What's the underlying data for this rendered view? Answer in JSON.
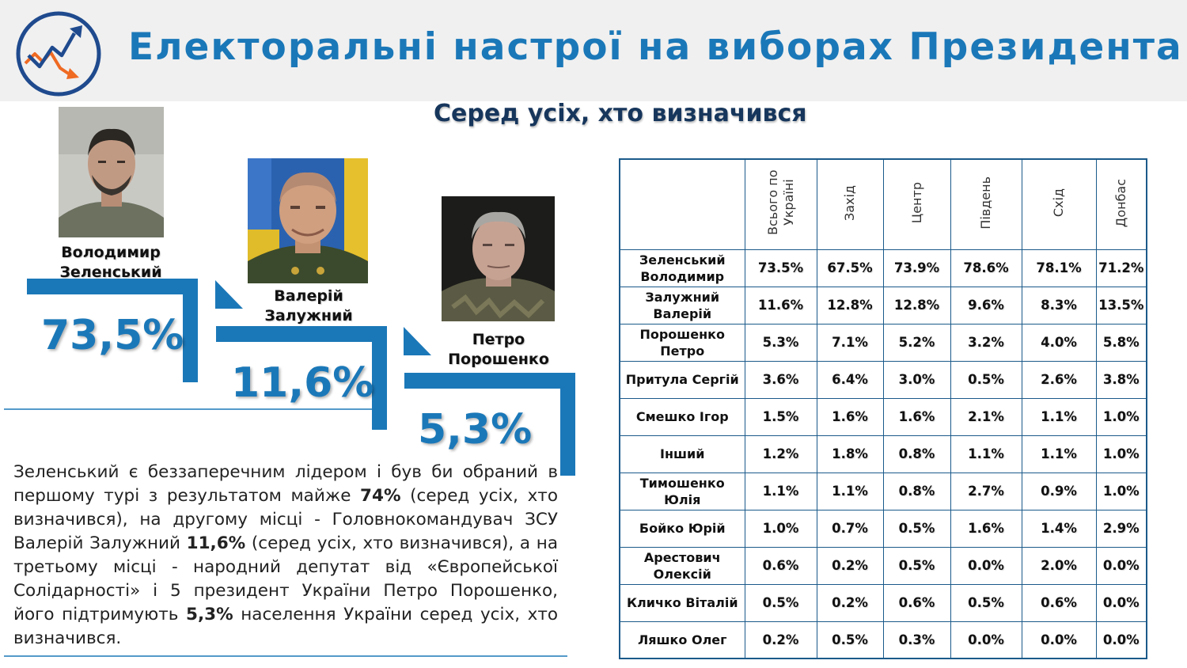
{
  "header": {
    "title": "Електоральні настрої на виборах Президента",
    "subtitle": "Серед усіх, хто визначився"
  },
  "candidates": [
    {
      "name_line1": "Володимир",
      "name_line2": "Зеленський",
      "percent": "73,5%",
      "photo": "zelensky-photo"
    },
    {
      "name_line1": "Валерій",
      "name_line2": "Залужний",
      "percent": "11,6%",
      "photo": "zaluzhny-photo"
    },
    {
      "name_line1": "Петро",
      "name_line2": "Порошенко",
      "percent": "5,3%",
      "photo": "poroshenko-photo"
    }
  ],
  "description": {
    "p1": "Зеленський є беззаперечним лідером і був би обраний в першому турі з результатом майже ",
    "b1": "74%",
    "p2": " (серед усіх, хто визначився), на другому місці - Головнокомандувач ЗСУ Валерій Залужний ",
    "b2": "11,6%",
    "p3": " (серед усіх, хто визначився), а на третьому місці - народний депутат від «Європейської Солідарності» і 5 президент України Петро Порошенко, його підтримують ",
    "b3": "5,3%",
    "p4": " населення України серед усіх, хто визначився."
  },
  "table": {
    "columns": [
      "Всього по Україні",
      "Захід",
      "Центр",
      "Південь",
      "Схід",
      "Донбас"
    ],
    "rows": [
      {
        "name": "Зеленський Володимир",
        "values": [
          "73.5%",
          "67.5%",
          "73.9%",
          "78.6%",
          "78.1%",
          "71.2%"
        ]
      },
      {
        "name": "Залужний Валерій",
        "values": [
          "11.6%",
          "12.8%",
          "12.8%",
          "9.6%",
          "8.3%",
          "13.5%"
        ]
      },
      {
        "name": "Порошенко Петро",
        "values": [
          "5.3%",
          "7.1%",
          "5.2%",
          "3.2%",
          "4.0%",
          "5.8%"
        ]
      },
      {
        "name": "Притула Сергій",
        "values": [
          "3.6%",
          "6.4%",
          "3.0%",
          "0.5%",
          "2.6%",
          "3.8%"
        ]
      },
      {
        "name": "Смешко Ігор",
        "values": [
          "1.5%",
          "1.6%",
          "1.6%",
          "2.1%",
          "1.1%",
          "1.0%"
        ]
      },
      {
        "name": "Інший",
        "values": [
          "1.2%",
          "1.8%",
          "0.8%",
          "1.1%",
          "1.1%",
          "1.0%"
        ]
      },
      {
        "name": "Тимошенко Юлія",
        "values": [
          "1.1%",
          "1.1%",
          "0.8%",
          "2.7%",
          "0.9%",
          "1.0%"
        ]
      },
      {
        "name": "Бойко Юрій",
        "values": [
          "1.0%",
          "0.7%",
          "0.5%",
          "1.6%",
          "1.4%",
          "2.9%"
        ]
      },
      {
        "name": "Арестович Олексій",
        "values": [
          "0.6%",
          "0.2%",
          "0.5%",
          "0.0%",
          "2.0%",
          "0.0%"
        ]
      },
      {
        "name": "Кличко Віталій",
        "values": [
          "0.5%",
          "0.2%",
          "0.6%",
          "0.5%",
          "0.6%",
          "0.0%"
        ]
      },
      {
        "name": "Ляшко Олег",
        "values": [
          "0.2%",
          "0.5%",
          "0.3%",
          "0.0%",
          "0.0%",
          "0.0%"
        ]
      }
    ]
  },
  "colors": {
    "accent": "#1b78b8",
    "dark_blue": "#17365c",
    "header_bg": "#f0f0f0",
    "arrow_orange": "#ef6a23"
  }
}
